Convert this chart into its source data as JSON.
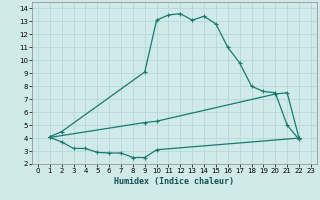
{
  "xlabel": "Humidex (Indice chaleur)",
  "bg_color": "#d0eaea",
  "line_color": "#1a7a6e",
  "grid_color": "#b8d8d8",
  "xlim": [
    -0.5,
    23.5
  ],
  "ylim": [
    2,
    14.5
  ],
  "xticks": [
    0,
    1,
    2,
    3,
    4,
    5,
    6,
    7,
    8,
    9,
    10,
    11,
    12,
    13,
    14,
    15,
    16,
    17,
    18,
    19,
    20,
    21,
    22,
    23
  ],
  "yticks": [
    2,
    3,
    4,
    5,
    6,
    7,
    8,
    9,
    10,
    11,
    12,
    13,
    14
  ],
  "curve1_x": [
    1,
    2,
    9,
    10,
    11,
    12,
    13,
    14,
    15,
    16,
    17,
    18,
    19,
    20,
    21,
    22
  ],
  "curve1_y": [
    4.1,
    4.5,
    9.1,
    13.1,
    13.5,
    13.6,
    13.1,
    13.4,
    12.8,
    11.0,
    9.8,
    8.0,
    7.6,
    7.5,
    5.0,
    3.9
  ],
  "curve2_x": [
    1,
    9,
    10,
    20,
    21,
    22
  ],
  "curve2_y": [
    4.05,
    5.2,
    5.3,
    7.4,
    7.5,
    4.0
  ],
  "curve3_x": [
    1,
    2,
    3,
    4,
    5,
    6,
    7,
    8,
    9,
    10,
    22
  ],
  "curve3_y": [
    4.05,
    3.7,
    3.2,
    3.2,
    2.9,
    2.85,
    2.85,
    2.5,
    2.5,
    3.1,
    4.0
  ]
}
